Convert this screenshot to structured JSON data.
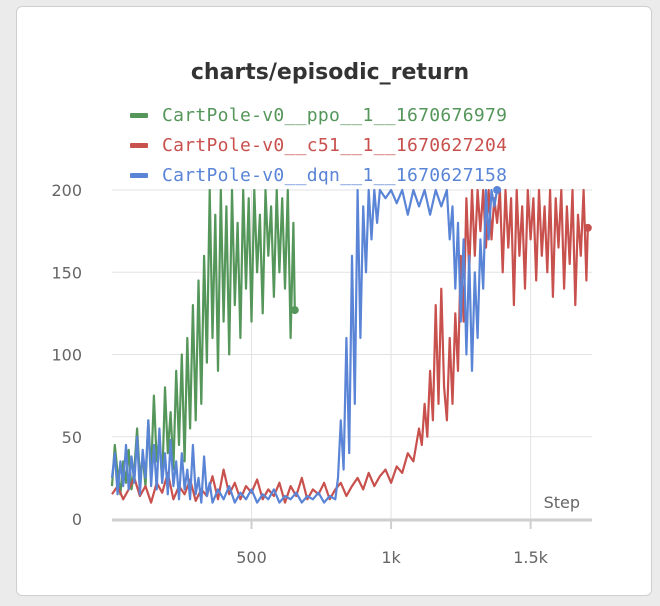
{
  "chart_data": {
    "type": "line",
    "title": "charts/episodic_return",
    "xlabel": "Step",
    "ylabel": "",
    "xlim": [
      0,
      1720
    ],
    "ylim": [
      0,
      200
    ],
    "x_ticks": [
      500,
      1000,
      1500
    ],
    "x_tick_labels": [
      "500",
      "1k",
      "1.5k"
    ],
    "y_ticks": [
      0,
      50,
      100,
      150,
      200
    ],
    "y_tick_labels": [
      "0",
      "50",
      "100",
      "150",
      "200"
    ],
    "grid": true,
    "legend_position": "top-left",
    "series": [
      {
        "name": "CartPole-v0__ppo__1__1670676979",
        "color": "#55965a",
        "end_x": 655,
        "end_y": 127,
        "points": [
          [
            0,
            20
          ],
          [
            10,
            45
          ],
          [
            20,
            28
          ],
          [
            30,
            15
          ],
          [
            40,
            35
          ],
          [
            50,
            22
          ],
          [
            60,
            42
          ],
          [
            70,
            18
          ],
          [
            80,
            30
          ],
          [
            90,
            55
          ],
          [
            100,
            25
          ],
          [
            110,
            38
          ],
          [
            120,
            20
          ],
          [
            130,
            60
          ],
          [
            140,
            28
          ],
          [
            150,
            75
          ],
          [
            160,
            35
          ],
          [
            170,
            50
          ],
          [
            180,
            22
          ],
          [
            190,
            80
          ],
          [
            200,
            40
          ],
          [
            210,
            65
          ],
          [
            220,
            30
          ],
          [
            230,
            90
          ],
          [
            240,
            45
          ],
          [
            250,
            100
          ],
          [
            260,
            35
          ],
          [
            270,
            110
          ],
          [
            280,
            55
          ],
          [
            290,
            130
          ],
          [
            300,
            60
          ],
          [
            310,
            145
          ],
          [
            320,
            70
          ],
          [
            330,
            160
          ],
          [
            340,
            95
          ],
          [
            350,
            200
          ],
          [
            360,
            110
          ],
          [
            370,
            185
          ],
          [
            380,
            90
          ],
          [
            390,
            200
          ],
          [
            400,
            120
          ],
          [
            410,
            190
          ],
          [
            420,
            100
          ],
          [
            430,
            200
          ],
          [
            440,
            130
          ],
          [
            450,
            180
          ],
          [
            460,
            110
          ],
          [
            470,
            200
          ],
          [
            480,
            140
          ],
          [
            490,
            195
          ],
          [
            500,
            120
          ],
          [
            510,
            200
          ],
          [
            520,
            150
          ],
          [
            530,
            185
          ],
          [
            540,
            125
          ],
          [
            550,
            200
          ],
          [
            560,
            160
          ],
          [
            570,
            190
          ],
          [
            580,
            135
          ],
          [
            590,
            200
          ],
          [
            600,
            150
          ],
          [
            610,
            195
          ],
          [
            620,
            140
          ],
          [
            630,
            200
          ],
          [
            640,
            110
          ],
          [
            650,
            180
          ],
          [
            655,
            127
          ]
        ]
      },
      {
        "name": "CartPole-v0__c51__1__1670627204",
        "color": "#c8504d",
        "end_x": 1705,
        "end_y": 177,
        "points": [
          [
            0,
            15
          ],
          [
            20,
            20
          ],
          [
            40,
            12
          ],
          [
            60,
            18
          ],
          [
            80,
            25
          ],
          [
            100,
            14
          ],
          [
            120,
            20
          ],
          [
            140,
            10
          ],
          [
            160,
            22
          ],
          [
            180,
            16
          ],
          [
            200,
            28
          ],
          [
            220,
            12
          ],
          [
            240,
            20
          ],
          [
            260,
            15
          ],
          [
            280,
            24
          ],
          [
            300,
            11
          ],
          [
            320,
            18
          ],
          [
            340,
            14
          ],
          [
            360,
            26
          ],
          [
            380,
            12
          ],
          [
            400,
            30
          ],
          [
            420,
            15
          ],
          [
            440,
            22
          ],
          [
            460,
            12
          ],
          [
            480,
            20
          ],
          [
            500,
            16
          ],
          [
            520,
            24
          ],
          [
            540,
            12
          ],
          [
            560,
            18
          ],
          [
            580,
            14
          ],
          [
            600,
            22
          ],
          [
            620,
            10
          ],
          [
            640,
            20
          ],
          [
            660,
            14
          ],
          [
            680,
            25
          ],
          [
            700,
            12
          ],
          [
            720,
            18
          ],
          [
            740,
            15
          ],
          [
            760,
            22
          ],
          [
            780,
            12
          ],
          [
            800,
            18
          ],
          [
            820,
            22
          ],
          [
            840,
            14
          ],
          [
            860,
            20
          ],
          [
            880,
            25
          ],
          [
            900,
            18
          ],
          [
            920,
            28
          ],
          [
            940,
            20
          ],
          [
            960,
            26
          ],
          [
            980,
            30
          ],
          [
            1000,
            22
          ],
          [
            1020,
            32
          ],
          [
            1040,
            28
          ],
          [
            1060,
            40
          ],
          [
            1080,
            35
          ],
          [
            1100,
            55
          ],
          [
            1110,
            45
          ],
          [
            1120,
            70
          ],
          [
            1130,
            50
          ],
          [
            1140,
            90
          ],
          [
            1150,
            60
          ],
          [
            1160,
            130
          ],
          [
            1170,
            70
          ],
          [
            1180,
            140
          ],
          [
            1190,
            80
          ],
          [
            1200,
            60
          ],
          [
            1210,
            110
          ],
          [
            1220,
            70
          ],
          [
            1230,
            125
          ],
          [
            1240,
            90
          ],
          [
            1250,
            160
          ],
          [
            1260,
            120
          ],
          [
            1270,
            195
          ],
          [
            1280,
            150
          ],
          [
            1290,
            200
          ],
          [
            1300,
            160
          ],
          [
            1310,
            200
          ],
          [
            1320,
            175
          ],
          [
            1330,
            200
          ],
          [
            1340,
            165
          ],
          [
            1350,
            200
          ],
          [
            1360,
            170
          ],
          [
            1370,
            195
          ],
          [
            1380,
            180
          ],
          [
            1390,
            200
          ],
          [
            1400,
            150
          ],
          [
            1410,
            200
          ],
          [
            1420,
            165
          ],
          [
            1430,
            195
          ],
          [
            1440,
            130
          ],
          [
            1450,
            200
          ],
          [
            1460,
            160
          ],
          [
            1470,
            190
          ],
          [
            1480,
            140
          ],
          [
            1490,
            200
          ],
          [
            1500,
            170
          ],
          [
            1510,
            195
          ],
          [
            1520,
            145
          ],
          [
            1530,
            200
          ],
          [
            1540,
            160
          ],
          [
            1550,
            190
          ],
          [
            1560,
            150
          ],
          [
            1570,
            200
          ],
          [
            1580,
            135
          ],
          [
            1590,
            195
          ],
          [
            1600,
            165
          ],
          [
            1610,
            200
          ],
          [
            1620,
            140
          ],
          [
            1630,
            190
          ],
          [
            1640,
            155
          ],
          [
            1650,
            200
          ],
          [
            1660,
            130
          ],
          [
            1670,
            185
          ],
          [
            1680,
            160
          ],
          [
            1690,
            200
          ],
          [
            1700,
            145
          ],
          [
            1705,
            177
          ]
        ]
      },
      {
        "name": "CartPole-v0__dqn__1__1670627158",
        "color": "#5a84d6",
        "end_x": 1380,
        "end_y": 200,
        "points": [
          [
            0,
            25
          ],
          [
            10,
            40
          ],
          [
            20,
            15
          ],
          [
            30,
            35
          ],
          [
            40,
            20
          ],
          [
            50,
            45
          ],
          [
            60,
            18
          ],
          [
            70,
            38
          ],
          [
            80,
            22
          ],
          [
            90,
            50
          ],
          [
            100,
            15
          ],
          [
            110,
            42
          ],
          [
            120,
            25
          ],
          [
            130,
            60
          ],
          [
            140,
            20
          ],
          [
            150,
            45
          ],
          [
            160,
            18
          ],
          [
            170,
            55
          ],
          [
            180,
            22
          ],
          [
            190,
            40
          ],
          [
            200,
            15
          ],
          [
            210,
            48
          ],
          [
            220,
            20
          ],
          [
            230,
            35
          ],
          [
            240,
            12
          ],
          [
            250,
            40
          ],
          [
            260,
            18
          ],
          [
            270,
            30
          ],
          [
            280,
            12
          ],
          [
            290,
            45
          ],
          [
            300,
            15
          ],
          [
            310,
            25
          ],
          [
            320,
            10
          ],
          [
            330,
            38
          ],
          [
            340,
            14
          ],
          [
            350,
            22
          ],
          [
            360,
            10
          ],
          [
            380,
            18
          ],
          [
            400,
            12
          ],
          [
            420,
            20
          ],
          [
            440,
            10
          ],
          [
            460,
            16
          ],
          [
            480,
            12
          ],
          [
            500,
            18
          ],
          [
            520,
            10
          ],
          [
            540,
            15
          ],
          [
            560,
            12
          ],
          [
            580,
            18
          ],
          [
            600,
            10
          ],
          [
            620,
            14
          ],
          [
            640,
            12
          ],
          [
            660,
            16
          ],
          [
            680,
            10
          ],
          [
            700,
            14
          ],
          [
            720,
            12
          ],
          [
            740,
            16
          ],
          [
            760,
            10
          ],
          [
            780,
            14
          ],
          [
            800,
            12
          ],
          [
            810,
            25
          ],
          [
            820,
            60
          ],
          [
            830,
            30
          ],
          [
            840,
            110
          ],
          [
            850,
            40
          ],
          [
            860,
            160
          ],
          [
            870,
            70
          ],
          [
            880,
            200
          ],
          [
            890,
            110
          ],
          [
            900,
            190
          ],
          [
            910,
            150
          ],
          [
            920,
            200
          ],
          [
            930,
            170
          ],
          [
            940,
            200
          ],
          [
            950,
            180
          ],
          [
            960,
            200
          ],
          [
            980,
            195
          ],
          [
            1000,
            200
          ],
          [
            1020,
            192
          ],
          [
            1040,
            200
          ],
          [
            1060,
            185
          ],
          [
            1080,
            200
          ],
          [
            1100,
            190
          ],
          [
            1120,
            200
          ],
          [
            1140,
            185
          ],
          [
            1160,
            200
          ],
          [
            1180,
            190
          ],
          [
            1200,
            200
          ],
          [
            1210,
            170
          ],
          [
            1220,
            190
          ],
          [
            1230,
            140
          ],
          [
            1240,
            180
          ],
          [
            1250,
            120
          ],
          [
            1260,
            170
          ],
          [
            1270,
            100
          ],
          [
            1280,
            160
          ],
          [
            1290,
            90
          ],
          [
            1300,
            150
          ],
          [
            1310,
            110
          ],
          [
            1320,
            170
          ],
          [
            1330,
            140
          ],
          [
            1340,
            200
          ],
          [
            1350,
            170
          ],
          [
            1360,
            200
          ],
          [
            1370,
            190
          ],
          [
            1380,
            200
          ]
        ]
      }
    ]
  }
}
